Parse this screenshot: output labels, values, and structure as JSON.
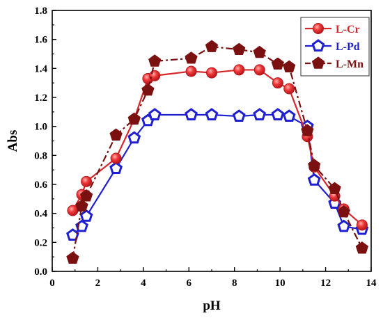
{
  "chart_data": {
    "type": "line",
    "title": "",
    "xlabel": "pH",
    "ylabel": "Abs",
    "xlim": [
      0,
      14
    ],
    "ylim": [
      0.0,
      1.8
    ],
    "xticks": [
      0,
      2,
      4,
      6,
      8,
      10,
      12,
      14
    ],
    "xtick_labels": [
      "0",
      "2",
      "4",
      "6",
      "8",
      "10",
      "12",
      "14"
    ],
    "yticks": [
      0.0,
      0.2,
      0.4,
      0.6,
      0.8,
      1.0,
      1.2,
      1.4,
      1.6,
      1.8
    ],
    "ytick_labels": [
      "0.0",
      "0.2",
      "0.4",
      "0.6",
      "0.8",
      "1.0",
      "1.2",
      "1.4",
      "1.6",
      "1.8"
    ],
    "grid": false,
    "legend_position": "top-right",
    "series": [
      {
        "name": "L-Cr",
        "color": "#d8262b",
        "marker": "sphere",
        "line_style": "solid",
        "points": [
          [
            0.9,
            0.42
          ],
          [
            1.3,
            0.53
          ],
          [
            1.5,
            0.62
          ],
          [
            2.8,
            0.78
          ],
          [
            3.6,
            1.05
          ],
          [
            4.2,
            1.33
          ],
          [
            4.5,
            1.35
          ],
          [
            6.1,
            1.38
          ],
          [
            7.0,
            1.37
          ],
          [
            8.2,
            1.39
          ],
          [
            9.1,
            1.39
          ],
          [
            9.9,
            1.3
          ],
          [
            10.4,
            1.26
          ],
          [
            11.2,
            0.93
          ],
          [
            11.5,
            0.72
          ],
          [
            12.4,
            0.52
          ],
          [
            12.8,
            0.43
          ],
          [
            13.6,
            0.32
          ]
        ]
      },
      {
        "name": "L-Pd",
        "color": "#1f1fd2",
        "marker": "pentagon-open",
        "line_style": "solid",
        "points": [
          [
            0.9,
            0.25
          ],
          [
            1.3,
            0.31
          ],
          [
            1.5,
            0.38
          ],
          [
            2.8,
            0.71
          ],
          [
            3.6,
            0.92
          ],
          [
            4.2,
            1.04
          ],
          [
            4.5,
            1.08
          ],
          [
            6.1,
            1.08
          ],
          [
            7.0,
            1.08
          ],
          [
            8.2,
            1.07
          ],
          [
            9.1,
            1.08
          ],
          [
            9.9,
            1.08
          ],
          [
            10.4,
            1.07
          ],
          [
            11.2,
            1.0
          ],
          [
            11.5,
            0.63
          ],
          [
            12.4,
            0.47
          ],
          [
            12.8,
            0.31
          ],
          [
            13.6,
            0.29
          ]
        ]
      },
      {
        "name": "L-Mn",
        "color": "#7a1010",
        "marker": "pentagon-filled",
        "line_style": "dash-dot",
        "points": [
          [
            0.9,
            0.09
          ],
          [
            1.3,
            0.45
          ],
          [
            1.5,
            0.52
          ],
          [
            2.8,
            0.94
          ],
          [
            3.6,
            1.05
          ],
          [
            4.2,
            1.25
          ],
          [
            4.5,
            1.45
          ],
          [
            6.1,
            1.47
          ],
          [
            7.0,
            1.55
          ],
          [
            8.2,
            1.53
          ],
          [
            9.1,
            1.51
          ],
          [
            9.9,
            1.43
          ],
          [
            10.4,
            1.41
          ],
          [
            11.2,
            0.97
          ],
          [
            11.5,
            0.73
          ],
          [
            12.4,
            0.57
          ],
          [
            12.8,
            0.41
          ],
          [
            13.6,
            0.16
          ]
        ]
      }
    ]
  }
}
